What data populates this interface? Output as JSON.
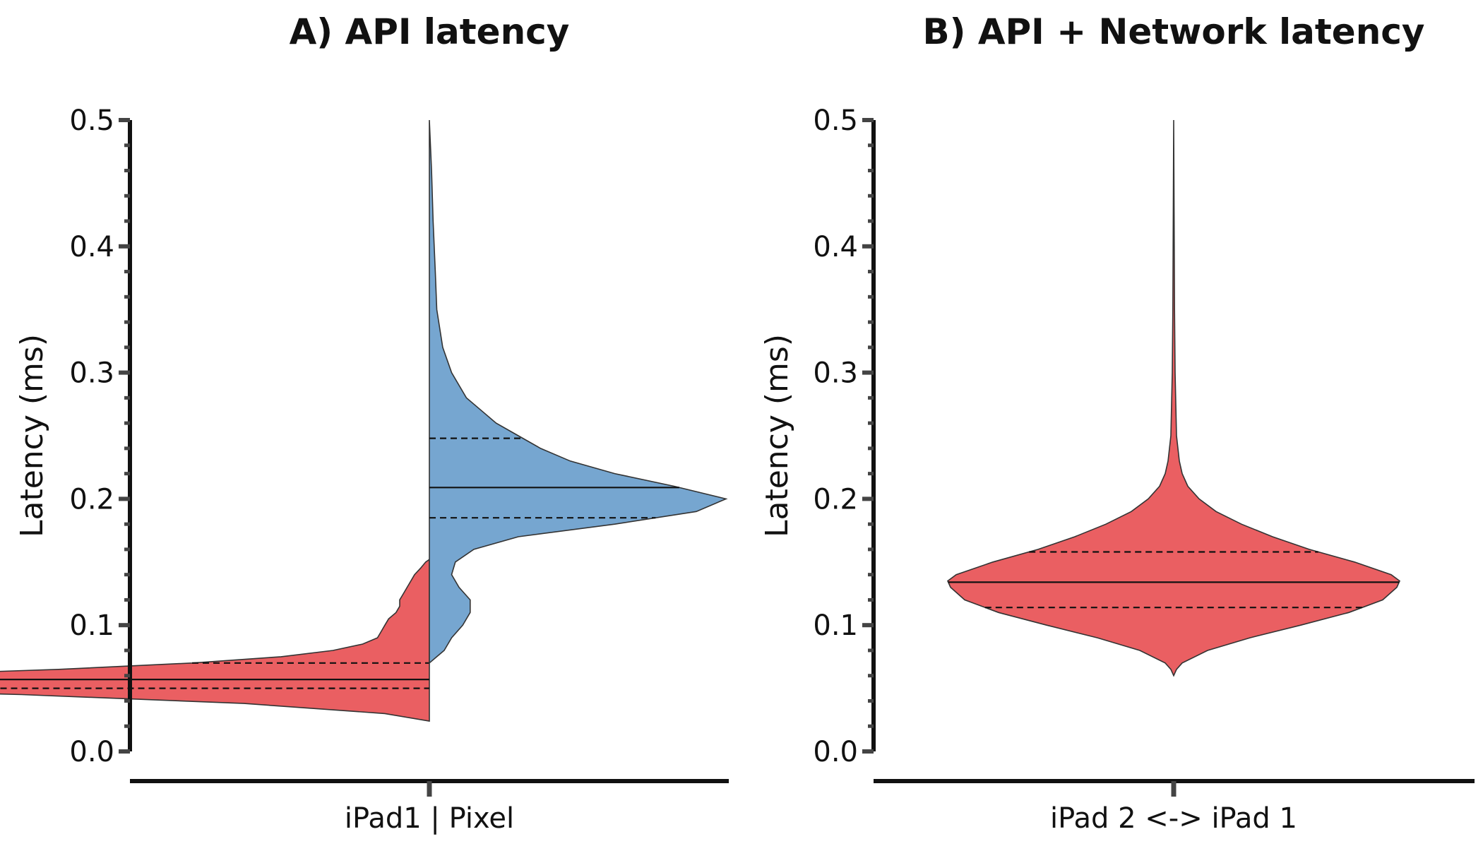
{
  "chart_data": [
    {
      "type": "violin",
      "title": "A) API latency",
      "ylabel": "Latency (ms)",
      "ylim": [
        0.0,
        0.5
      ],
      "yticks": [
        "0.0",
        "0.1",
        "0.2",
        "0.3",
        "0.4",
        "0.5"
      ],
      "ytick_values": [
        0.0,
        0.1,
        0.2,
        0.3,
        0.4,
        0.5
      ],
      "minor_ticks_per_major": 5,
      "category_label": "iPad1 | Pixel",
      "split": true,
      "series": [
        {
          "side": "left",
          "color": "#EA5F62",
          "profile": [
            [
              0.024,
              0.0
            ],
            [
              0.03,
              0.06
            ],
            [
              0.038,
              0.25
            ],
            [
              0.045,
              0.55
            ],
            [
              0.05,
              0.85
            ],
            [
              0.053,
              1.0
            ],
            [
              0.056,
              0.92
            ],
            [
              0.06,
              0.75
            ],
            [
              0.065,
              0.5
            ],
            [
              0.07,
              0.32
            ],
            [
              0.075,
              0.2
            ],
            [
              0.08,
              0.13
            ],
            [
              0.085,
              0.09
            ],
            [
              0.09,
              0.07
            ],
            [
              0.095,
              0.065
            ],
            [
              0.1,
              0.06
            ],
            [
              0.105,
              0.055
            ],
            [
              0.11,
              0.045
            ],
            [
              0.115,
              0.04
            ],
            [
              0.12,
              0.04
            ],
            [
              0.125,
              0.035
            ],
            [
              0.13,
              0.03
            ],
            [
              0.135,
              0.025
            ],
            [
              0.14,
              0.02
            ],
            [
              0.145,
              0.012
            ],
            [
              0.15,
              0.005
            ],
            [
              0.152,
              0.0
            ]
          ],
          "quartiles": [
            0.05,
            0.057,
            0.07
          ]
        },
        {
          "side": "right",
          "color": "#76A6D0",
          "profile": [
            [
              0.07,
              0.0
            ],
            [
              0.075,
              0.01
            ],
            [
              0.08,
              0.02
            ],
            [
              0.09,
              0.03
            ],
            [
              0.1,
              0.045
            ],
            [
              0.11,
              0.055
            ],
            [
              0.12,
              0.055
            ],
            [
              0.13,
              0.04
            ],
            [
              0.14,
              0.03
            ],
            [
              0.15,
              0.035
            ],
            [
              0.16,
              0.06
            ],
            [
              0.17,
              0.12
            ],
            [
              0.18,
              0.25
            ],
            [
              0.19,
              0.36
            ],
            [
              0.2,
              0.4
            ],
            [
              0.21,
              0.33
            ],
            [
              0.22,
              0.25
            ],
            [
              0.23,
              0.19
            ],
            [
              0.24,
              0.15
            ],
            [
              0.25,
              0.12
            ],
            [
              0.26,
              0.09
            ],
            [
              0.27,
              0.07
            ],
            [
              0.28,
              0.05
            ],
            [
              0.3,
              0.03
            ],
            [
              0.32,
              0.018
            ],
            [
              0.35,
              0.01
            ],
            [
              0.38,
              0.008
            ],
            [
              0.42,
              0.005
            ],
            [
              0.46,
              0.003
            ],
            [
              0.5,
              0.0
            ]
          ],
          "quartiles": [
            0.185,
            0.209,
            0.248
          ]
        }
      ]
    },
    {
      "type": "violin",
      "title": "B) API + Network latency",
      "ylabel": "Latency (ms)",
      "ylim": [
        0.0,
        0.5
      ],
      "yticks": [
        "0.0",
        "0.1",
        "0.2",
        "0.3",
        "0.4",
        "0.5"
      ],
      "ytick_values": [
        0.0,
        0.1,
        0.2,
        0.3,
        0.4,
        0.5
      ],
      "minor_ticks_per_major": 5,
      "category_label": "iPad 2 <-> iPad 1",
      "split": false,
      "series": [
        {
          "side": "both",
          "color": "#EA5F62",
          "profile": [
            [
              0.06,
              0.0
            ],
            [
              0.065,
              0.01
            ],
            [
              0.07,
              0.03
            ],
            [
              0.08,
              0.12
            ],
            [
              0.09,
              0.27
            ],
            [
              0.1,
              0.45
            ],
            [
              0.11,
              0.62
            ],
            [
              0.12,
              0.74
            ],
            [
              0.13,
              0.79
            ],
            [
              0.135,
              0.8
            ],
            [
              0.14,
              0.77
            ],
            [
              0.15,
              0.64
            ],
            [
              0.16,
              0.48
            ],
            [
              0.17,
              0.35
            ],
            [
              0.18,
              0.24
            ],
            [
              0.19,
              0.15
            ],
            [
              0.2,
              0.09
            ],
            [
              0.21,
              0.05
            ],
            [
              0.22,
              0.03
            ],
            [
              0.23,
              0.02
            ],
            [
              0.25,
              0.01
            ],
            [
              0.3,
              0.005
            ],
            [
              0.35,
              0.003
            ],
            [
              0.4,
              0.002
            ],
            [
              0.45,
              0.001
            ],
            [
              0.5,
              0.0
            ]
          ],
          "quartiles": [
            0.114,
            0.134,
            0.158
          ]
        }
      ]
    }
  ]
}
